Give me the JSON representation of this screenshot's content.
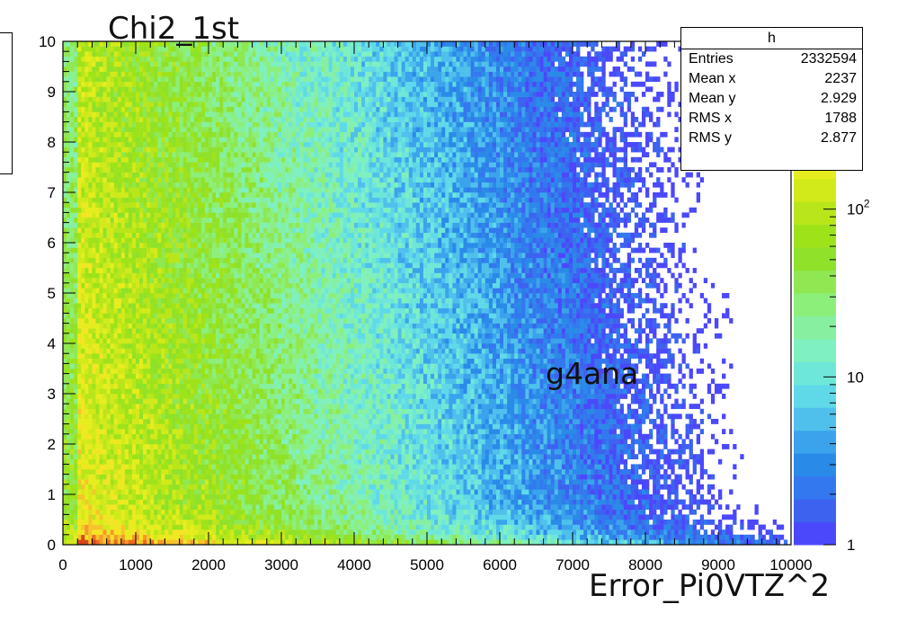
{
  "annotations": {
    "title": "Chi2_1st",
    "inner_label": "g4ana",
    "x_label": "Error_Pi0VTZ^2"
  },
  "stats_box": {
    "title": "h",
    "rows": [
      {
        "label": "Entries",
        "value": "2332594"
      },
      {
        "label": "Mean x",
        "value": "2237"
      },
      {
        "label": "Mean y",
        "value": "2.929"
      },
      {
        "label": "RMS x",
        "value": "1788"
      },
      {
        "label": "RMS y",
        "value": "2.877"
      }
    ]
  },
  "chart_data": {
    "type": "heatmap",
    "title": "Chi2_1st",
    "xlabel": "Error_Pi0VTZ^2",
    "ylabel": "",
    "xlim": [
      0,
      10000
    ],
    "ylim": [
      0,
      10
    ],
    "x_ticks": [
      0,
      1000,
      2000,
      3000,
      4000,
      5000,
      6000,
      7000,
      8000,
      9000,
      10000
    ],
    "y_ticks": [
      0,
      1,
      2,
      3,
      4,
      5,
      6,
      7,
      8,
      9,
      10
    ],
    "z_scale": "log",
    "z_range": [
      1,
      1000
    ],
    "z_tick_labels": [
      {
        "value": 1,
        "label": "1"
      },
      {
        "value": 10,
        "label": "10"
      },
      {
        "value": 100,
        "label": "10^2"
      }
    ],
    "palette": [
      "#4b48fb",
      "#3d62f0",
      "#3378ee",
      "#2a8ae8",
      "#3aa3ec",
      "#4fc0ec",
      "#5fd9e8",
      "#6fe7d8",
      "#7ff0c0",
      "#86f0a0",
      "#8cef7a",
      "#8fe851",
      "#8fe12a",
      "#9ee31a",
      "#b8e61a",
      "#d2ea1a",
      "#e6ed1f",
      "#f3e524",
      "#f6c52a",
      "#f29a2a",
      "#ea6a24",
      "#d9451d"
    ],
    "stats": {
      "name": "h",
      "entries": 2332594,
      "mean_x": 2237,
      "mean_y": 2.929,
      "rms_x": 1788,
      "rms_y": 2.877
    },
    "grid": false,
    "legend": "top-right stats box"
  }
}
